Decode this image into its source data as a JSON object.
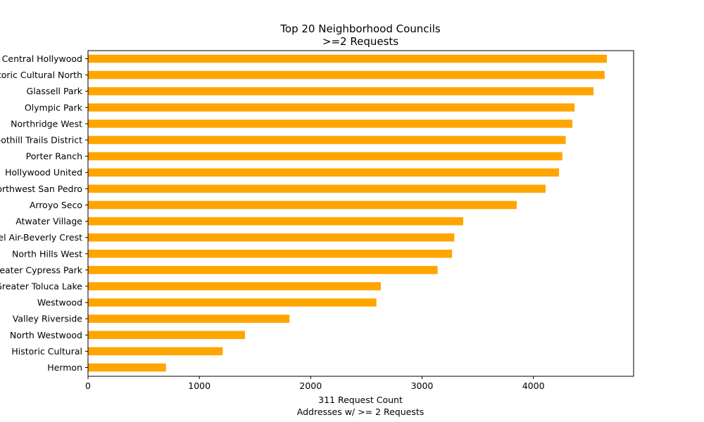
{
  "chart_data": {
    "type": "bar",
    "orientation": "horizontal",
    "title": "Top 20 Neighborhood Councils",
    "subtitle": ">=2 Requests",
    "xlabel": "311 Request Count",
    "xlabel2": "Addresses w/ >= 2 Requests",
    "ylabel": "",
    "xlim": [
      0,
      4900
    ],
    "xticks": [
      0,
      1000,
      2000,
      3000,
      4000
    ],
    "grid": false,
    "bar_color": "#ffa500",
    "categories": [
      "Central Hollywood",
      "Historic Cultural North",
      "Glassell Park",
      "Olympic Park",
      "Northridge West",
      "Foothill Trails District",
      "Porter Ranch",
      "Hollywood United",
      "Northwest San Pedro",
      "Arroyo Seco",
      "Atwater Village",
      "Bel Air-Beverly Crest",
      "North Hills West",
      "Greater Cypress Park",
      "Greater Toluca Lake",
      "Westwood",
      "Valley Riverside",
      "North Westwood",
      "Historic Cultural",
      "Hermon"
    ],
    "values": [
      4660,
      4640,
      4540,
      4370,
      4350,
      4290,
      4260,
      4230,
      4110,
      3850,
      3370,
      3290,
      3270,
      3140,
      2630,
      2590,
      1810,
      1410,
      1210,
      700
    ]
  }
}
